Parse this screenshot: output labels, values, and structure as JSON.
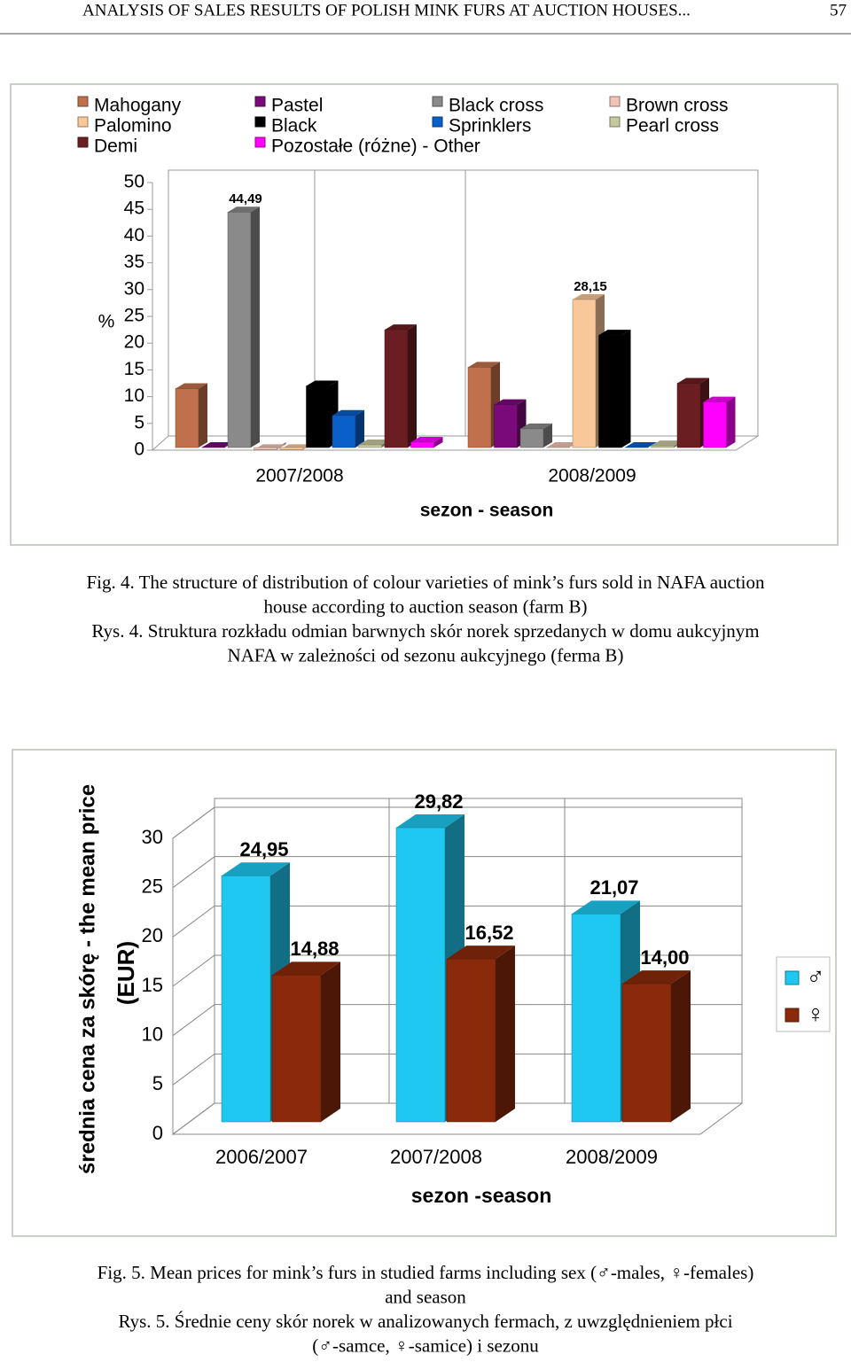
{
  "header": {
    "title": "ANALYSIS OF SALES RESULTS OF POLISH MINK FURS AT AUCTION HOUSES...",
    "page": "57"
  },
  "chart_data": [
    {
      "type": "bar",
      "ylabel": "%",
      "xlabel": "sezon - season",
      "categories": [
        "2007/2008",
        "2008/2009"
      ],
      "ylim": [
        0,
        50
      ],
      "yticks": [
        0,
        5,
        10,
        15,
        20,
        25,
        30,
        35,
        40,
        45,
        50
      ],
      "grid": false,
      "series": [
        {
          "name": "Mahogany",
          "color": "#c0704a",
          "values": [
            11.5,
            15.5
          ]
        },
        {
          "name": "Pastel",
          "color": "#7a0a7a",
          "values": [
            0.5,
            8.5
          ]
        },
        {
          "name": "Black cross",
          "color": "#8a8a8a",
          "values": [
            44.49,
            4
          ],
          "value_labels": [
            "44,49",
            null
          ]
        },
        {
          "name": "Brown cross",
          "color": "#f0c4b4",
          "values": [
            0.1,
            0.5
          ]
        },
        {
          "name": "Palomino",
          "color": "#f9c89a",
          "values": [
            0.1,
            28.15
          ],
          "value_labels": [
            null,
            "28,15"
          ]
        },
        {
          "name": "Black",
          "color": "#000000",
          "values": [
            12,
            21.5
          ]
        },
        {
          "name": "Sprinklers",
          "color": "#0a5fc8",
          "values": [
            6.5,
            0.5
          ]
        },
        {
          "name": "Pearl cross",
          "color": "#c8c8a0",
          "values": [
            1,
            0.8
          ]
        },
        {
          "name": "Demi",
          "color": "#6b1e22",
          "values": [
            22.5,
            12.5
          ]
        },
        {
          "name": "Pozostałe (różne) - Other",
          "color": "#ff00ff",
          "values": [
            1.5,
            9
          ]
        }
      ]
    },
    {
      "type": "bar",
      "ylabel": [
        "średnia cena za skórę - the mean price",
        "(EUR)"
      ],
      "xlabel": "sezon -season",
      "categories": [
        "2006/2007",
        "2007/2008",
        "2008/2009"
      ],
      "ylim": [
        0,
        30
      ],
      "yticks": [
        0,
        5,
        10,
        15,
        20,
        25,
        30
      ],
      "grid": true,
      "series": [
        {
          "name": "♂",
          "color": "#1ec8f0",
          "values": [
            24.95,
            29.82,
            21.07
          ],
          "value_labels": [
            "24,95",
            "29,82",
            "21,07"
          ]
        },
        {
          "name": "♀",
          "color": "#8b2a0a",
          "values": [
            14.88,
            16.52,
            14.0
          ],
          "value_labels": [
            "14,88",
            "16,52",
            "14,00"
          ]
        }
      ]
    }
  ],
  "captions": {
    "fig4": [
      "Fig. 4. The structure of distribution of colour varieties of mink’s furs sold in NAFA auction",
      "house according  to auction season (farm B)",
      "Rys. 4. Struktura rozkładu odmian barwnych skór norek sprzedanych w domu aukcyjnym",
      "NAFA w zależności od sezonu aukcyjnego (ferma B)"
    ],
    "fig5": [
      "Fig. 5. Mean prices for mink’s furs in studied farms including sex (♂-males, ♀-females)",
      "and season",
      "Rys. 5. Średnie ceny skór norek w analizowanych fermach, z uwzględnieniem płci",
      "(♂-samce, ♀-samice) i sezonu"
    ]
  }
}
